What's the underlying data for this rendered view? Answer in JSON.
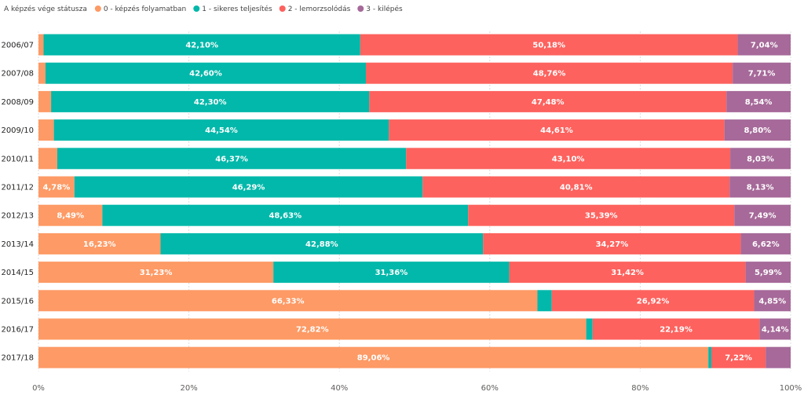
{
  "chart_data": {
    "type": "bar",
    "orientation": "horizontal",
    "stacked": "100%",
    "title": "",
    "legend": {
      "title": "A képzés vége státusza",
      "position": "top-left"
    },
    "categories": [
      "2006/07",
      "2007/08",
      "2008/09",
      "2009/10",
      "2010/11",
      "2011/12",
      "2012/13",
      "2013/14",
      "2014/15",
      "2015/16",
      "2016/17",
      "2017/18"
    ],
    "series": [
      {
        "name": "0 - képzés folyamatban",
        "color": "#FD9A65",
        "values": [
          0.68,
          0.93,
          1.68,
          2.05,
          2.5,
          4.78,
          8.49,
          16.23,
          31.23,
          66.33,
          72.82,
          89.06
        ],
        "labels": [
          "",
          "",
          "",
          "",
          "",
          "4,78%",
          "8,49%",
          "16,23%",
          "31,23%",
          "66,33%",
          "72,82%",
          "89,06%"
        ]
      },
      {
        "name": "1 - sikeres teljesítés",
        "color": "#01B8AA",
        "values": [
          42.1,
          42.6,
          42.3,
          44.54,
          46.37,
          46.29,
          48.63,
          42.88,
          31.36,
          1.9,
          0.85,
          0.4
        ],
        "labels": [
          "42,10%",
          "42,60%",
          "42,30%",
          "44,54%",
          "46,37%",
          "46,29%",
          "48,63%",
          "42,88%",
          "31,36%",
          "",
          "",
          ""
        ]
      },
      {
        "name": "2 - lemorzsolódás",
        "color": "#FD625E",
        "values": [
          50.18,
          48.76,
          47.48,
          44.61,
          43.1,
          40.81,
          35.39,
          34.27,
          31.42,
          26.92,
          22.19,
          7.22
        ],
        "labels": [
          "50,18%",
          "48,76%",
          "47,48%",
          "44,61%",
          "43,10%",
          "40,81%",
          "35,39%",
          "34,27%",
          "31,42%",
          "26,92%",
          "22,19%",
          "7,22%"
        ]
      },
      {
        "name": "3 - kilépés",
        "color": "#A66999",
        "values": [
          7.04,
          7.71,
          8.54,
          8.8,
          8.03,
          8.13,
          7.49,
          6.62,
          5.99,
          4.85,
          4.14,
          3.32
        ],
        "labels": [
          "7,04%",
          "7,71%",
          "8,54%",
          "8,80%",
          "8,03%",
          "8,13%",
          "7,49%",
          "6,62%",
          "5,99%",
          "4,85%",
          "4,14%",
          ""
        ]
      }
    ],
    "xlim": [
      0,
      100
    ],
    "xticks": [
      0,
      20,
      40,
      60,
      80,
      100
    ],
    "xtick_labels": [
      "0%",
      "20%",
      "40%",
      "60%",
      "80%",
      "100%"
    ],
    "grid": true,
    "xlabel": "",
    "ylabel": ""
  }
}
